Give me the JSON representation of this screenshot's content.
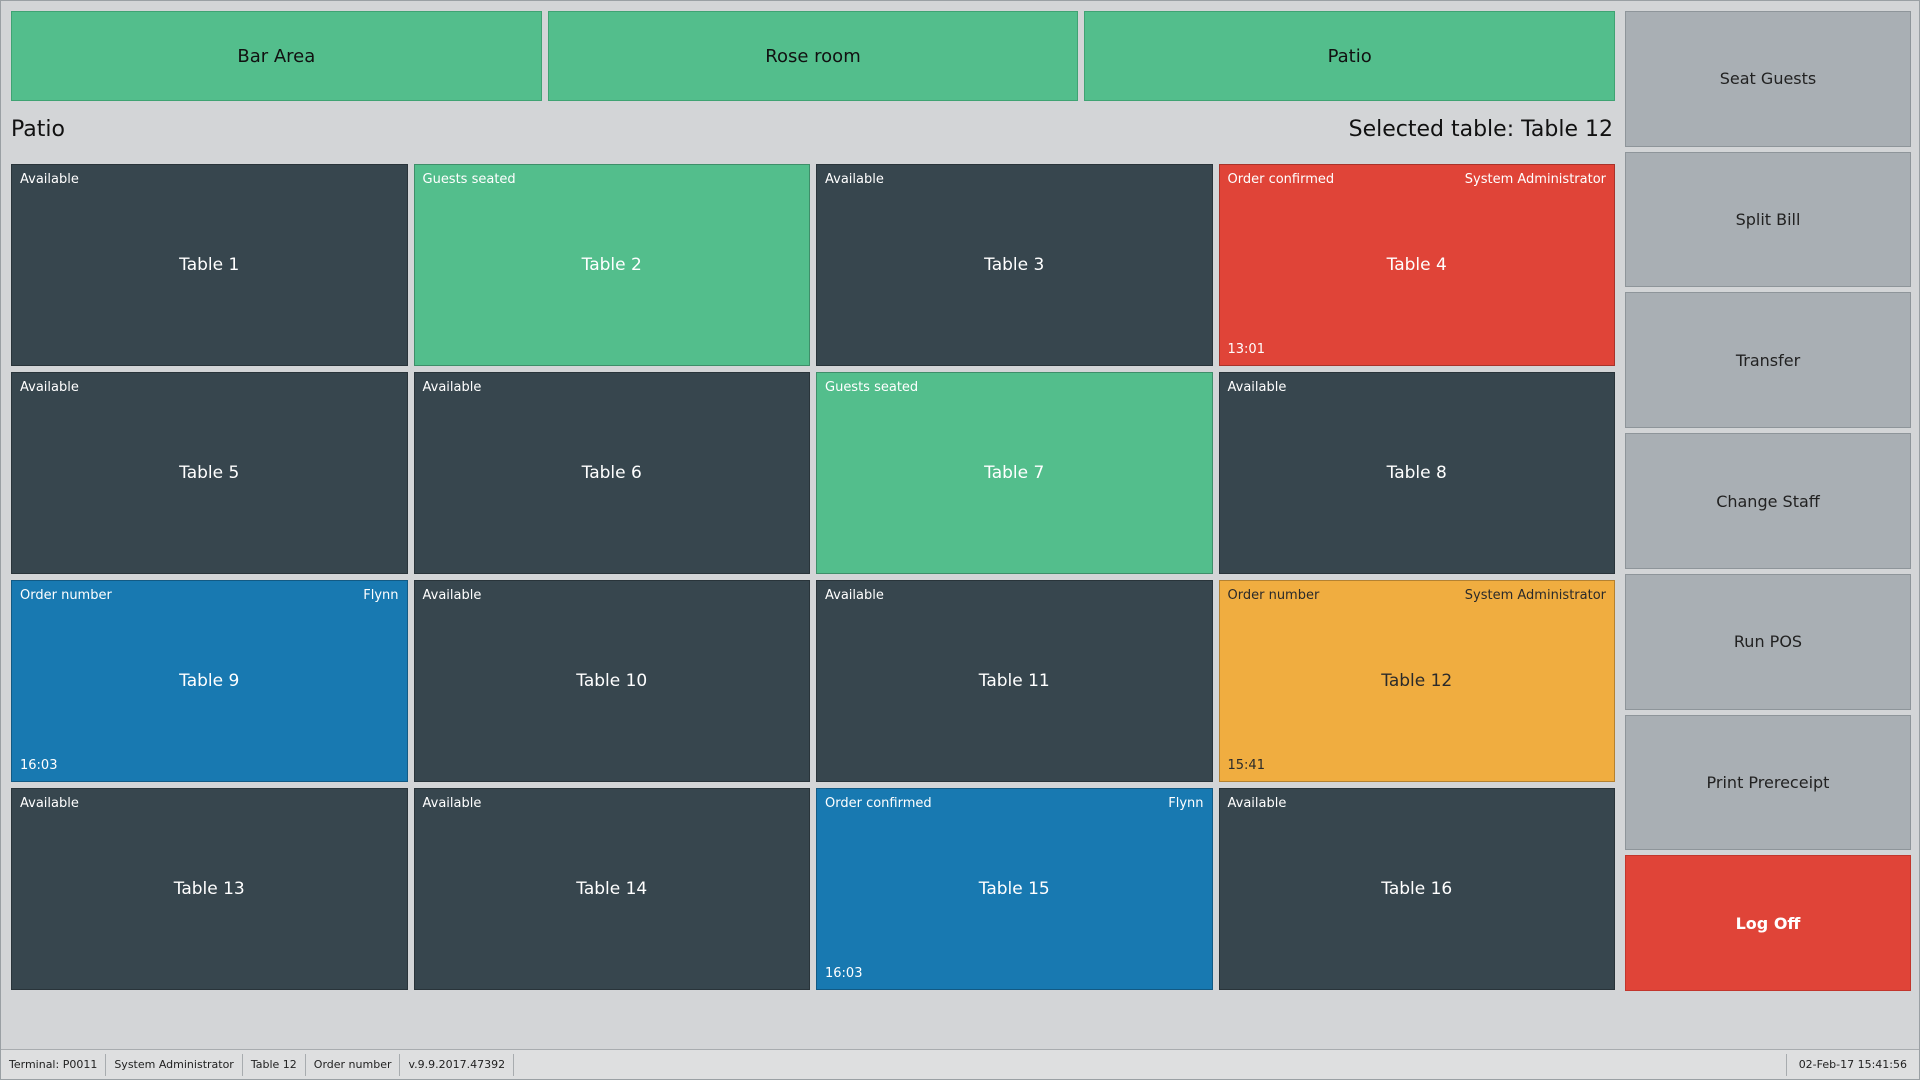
{
  "areas": [
    {
      "label": "Bar Area"
    },
    {
      "label": "Rose room"
    },
    {
      "label": "Patio"
    }
  ],
  "header": {
    "area_title": "Patio",
    "selected_table_text": "Selected table: Table 12"
  },
  "tables": [
    {
      "name": "Table 1",
      "status": "Available",
      "staff": "",
      "time": "",
      "state": "available"
    },
    {
      "name": "Table 2",
      "status": "Guests seated",
      "staff": "",
      "time": "",
      "state": "seated"
    },
    {
      "name": "Table 3",
      "status": "Available",
      "staff": "",
      "time": "",
      "state": "available"
    },
    {
      "name": "Table 4",
      "status": "Order confirmed",
      "staff": "System Administrator",
      "time": "13:01",
      "state": "confirmed-red"
    },
    {
      "name": "Table 5",
      "status": "Available",
      "staff": "",
      "time": "",
      "state": "available"
    },
    {
      "name": "Table 6",
      "status": "Available",
      "staff": "",
      "time": "",
      "state": "available"
    },
    {
      "name": "Table 7",
      "status": "Guests seated",
      "staff": "",
      "time": "",
      "state": "seated"
    },
    {
      "name": "Table 8",
      "status": "Available",
      "staff": "",
      "time": "",
      "state": "available"
    },
    {
      "name": "Table 9",
      "status": "Order number",
      "staff": "Flynn",
      "time": "16:03",
      "state": "order-blue"
    },
    {
      "name": "Table 10",
      "status": "Available",
      "staff": "",
      "time": "",
      "state": "available"
    },
    {
      "name": "Table 11",
      "status": "Available",
      "staff": "",
      "time": "",
      "state": "available"
    },
    {
      "name": "Table 12",
      "status": "Order number",
      "staff": "System Administrator",
      "time": "15:41",
      "state": "order-orange"
    },
    {
      "name": "Table 13",
      "status": "Available",
      "staff": "",
      "time": "",
      "state": "available"
    },
    {
      "name": "Table 14",
      "status": "Available",
      "staff": "",
      "time": "",
      "state": "available"
    },
    {
      "name": "Table 15",
      "status": "Order confirmed",
      "staff": "Flynn",
      "time": "16:03",
      "state": "order-blue"
    },
    {
      "name": "Table 16",
      "status": "Available",
      "staff": "",
      "time": "",
      "state": "available"
    }
  ],
  "actions": [
    {
      "label": "Seat Guests",
      "name": "seat-guests-button"
    },
    {
      "label": "Split Bill",
      "name": "split-bill-button"
    },
    {
      "label": "Transfer",
      "name": "transfer-button"
    },
    {
      "label": "Change Staff",
      "name": "change-staff-button"
    },
    {
      "label": "Run POS",
      "name": "run-pos-button"
    },
    {
      "label": "Print Prereceipt",
      "name": "print-prereceipt-button"
    },
    {
      "label": "Log Off",
      "name": "log-off-button"
    }
  ],
  "statusbar": {
    "terminal": "Terminal: P0011",
    "user": "System Administrator",
    "table": "Table 12",
    "order": "Order number",
    "version": "v.9.9.2017.47392",
    "datetime": "02-Feb-17 15:41:56"
  },
  "colors": {
    "available": "#37464e",
    "seated": "#53be8c",
    "confirmed_red": "#e04438",
    "order_blue": "#1879b1",
    "order_orange": "#f0ad40",
    "action_gray": "#a9afb4",
    "logoff_red": "#e04438"
  }
}
